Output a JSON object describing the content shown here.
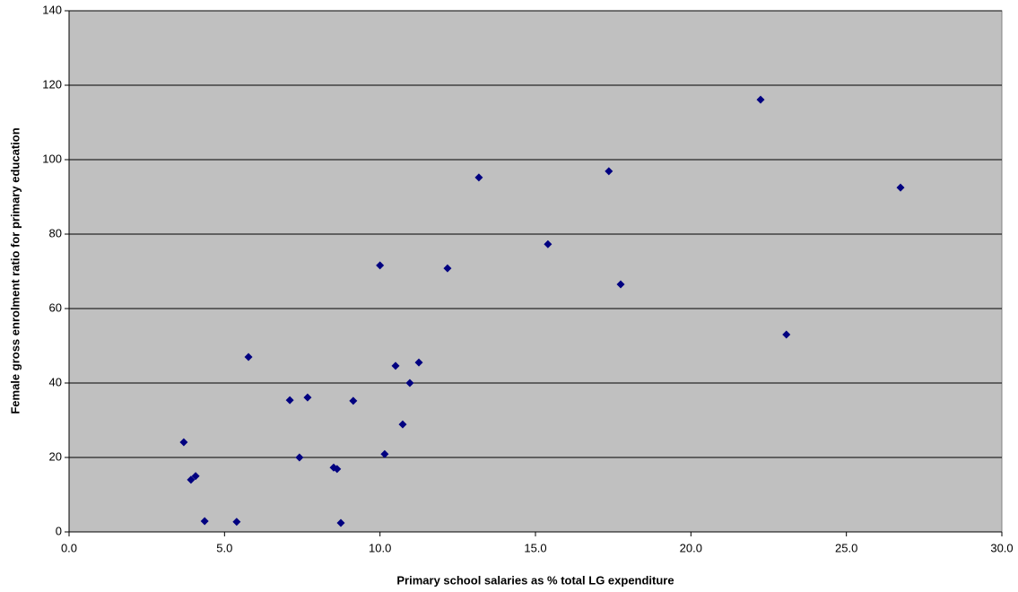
{
  "chart_data": {
    "type": "scatter",
    "x_label": "Primary school salaries as % total LG expenditure",
    "y_label": "Female gross enrolment ratio for primary education",
    "x": [
      3.69,
      3.92,
      4.07,
      4.36,
      5.39,
      5.77,
      7.1,
      7.67,
      7.41,
      8.51,
      8.62,
      8.74,
      9.14,
      10.0,
      10.15,
      10.5,
      10.73,
      10.96,
      11.25,
      12.17,
      13.18,
      15.4,
      17.36,
      17.74,
      22.24,
      23.07,
      26.74
    ],
    "values": [
      24.1,
      14,
      15,
      2.9,
      2.7,
      47,
      35.4,
      36.1,
      20,
      17.3,
      16.9,
      2.4,
      35.2,
      71.6,
      20.9,
      44.6,
      28.9,
      40,
      45.5,
      70.8,
      95.2,
      77.3,
      96.9,
      66.5,
      116.1,
      53,
      92.5
    ],
    "color": "#000080",
    "plot_background": "#c0c0c0",
    "xlim": [
      0,
      30
    ],
    "ylim": [
      0,
      140
    ],
    "xticks": [
      {
        "value": 0,
        "label": "0.0"
      },
      {
        "value": 5,
        "label": "5.0"
      },
      {
        "value": 10,
        "label": "10.0"
      },
      {
        "value": 15,
        "label": "15.0"
      },
      {
        "value": 20,
        "label": "20.0"
      },
      {
        "value": 25,
        "label": "25.0"
      },
      {
        "value": 30,
        "label": "30.0"
      }
    ],
    "yticks": [
      0,
      20,
      40,
      60,
      80,
      100,
      120,
      140
    ],
    "grid": true
  }
}
